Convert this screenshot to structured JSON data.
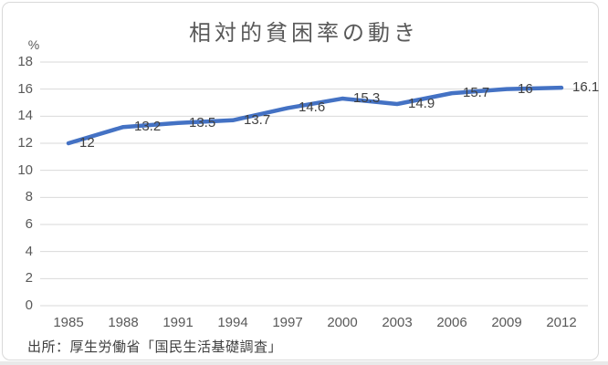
{
  "chart_data": {
    "type": "line",
    "title": "相対的貧困率の動き",
    "ylabel": "%",
    "xlabel": "",
    "categories": [
      "1985",
      "1988",
      "1991",
      "1994",
      "1997",
      "2000",
      "2003",
      "2006",
      "2009",
      "2012"
    ],
    "values": [
      12,
      13.2,
      13.5,
      13.7,
      14.6,
      15.3,
      14.9,
      15.7,
      16,
      16.1
    ],
    "value_labels": [
      "12",
      "13.2",
      "13.5",
      "13.7",
      "14.6",
      "15.3",
      "14.9",
      "15.7",
      "16",
      "16.1"
    ],
    "ylim": [
      0,
      18
    ],
    "ytick_step": 2,
    "grid": "horizontal",
    "legend": "none"
  },
  "source": "出所：厚生労働省「国民生活基礎調査」",
  "colors": {
    "line": "#4472C4",
    "gridline": "#D9D9D9",
    "axis_text": "#595959",
    "data_label_text": "#404040",
    "title_text": "#595959",
    "border": "#D9D9D9"
  }
}
